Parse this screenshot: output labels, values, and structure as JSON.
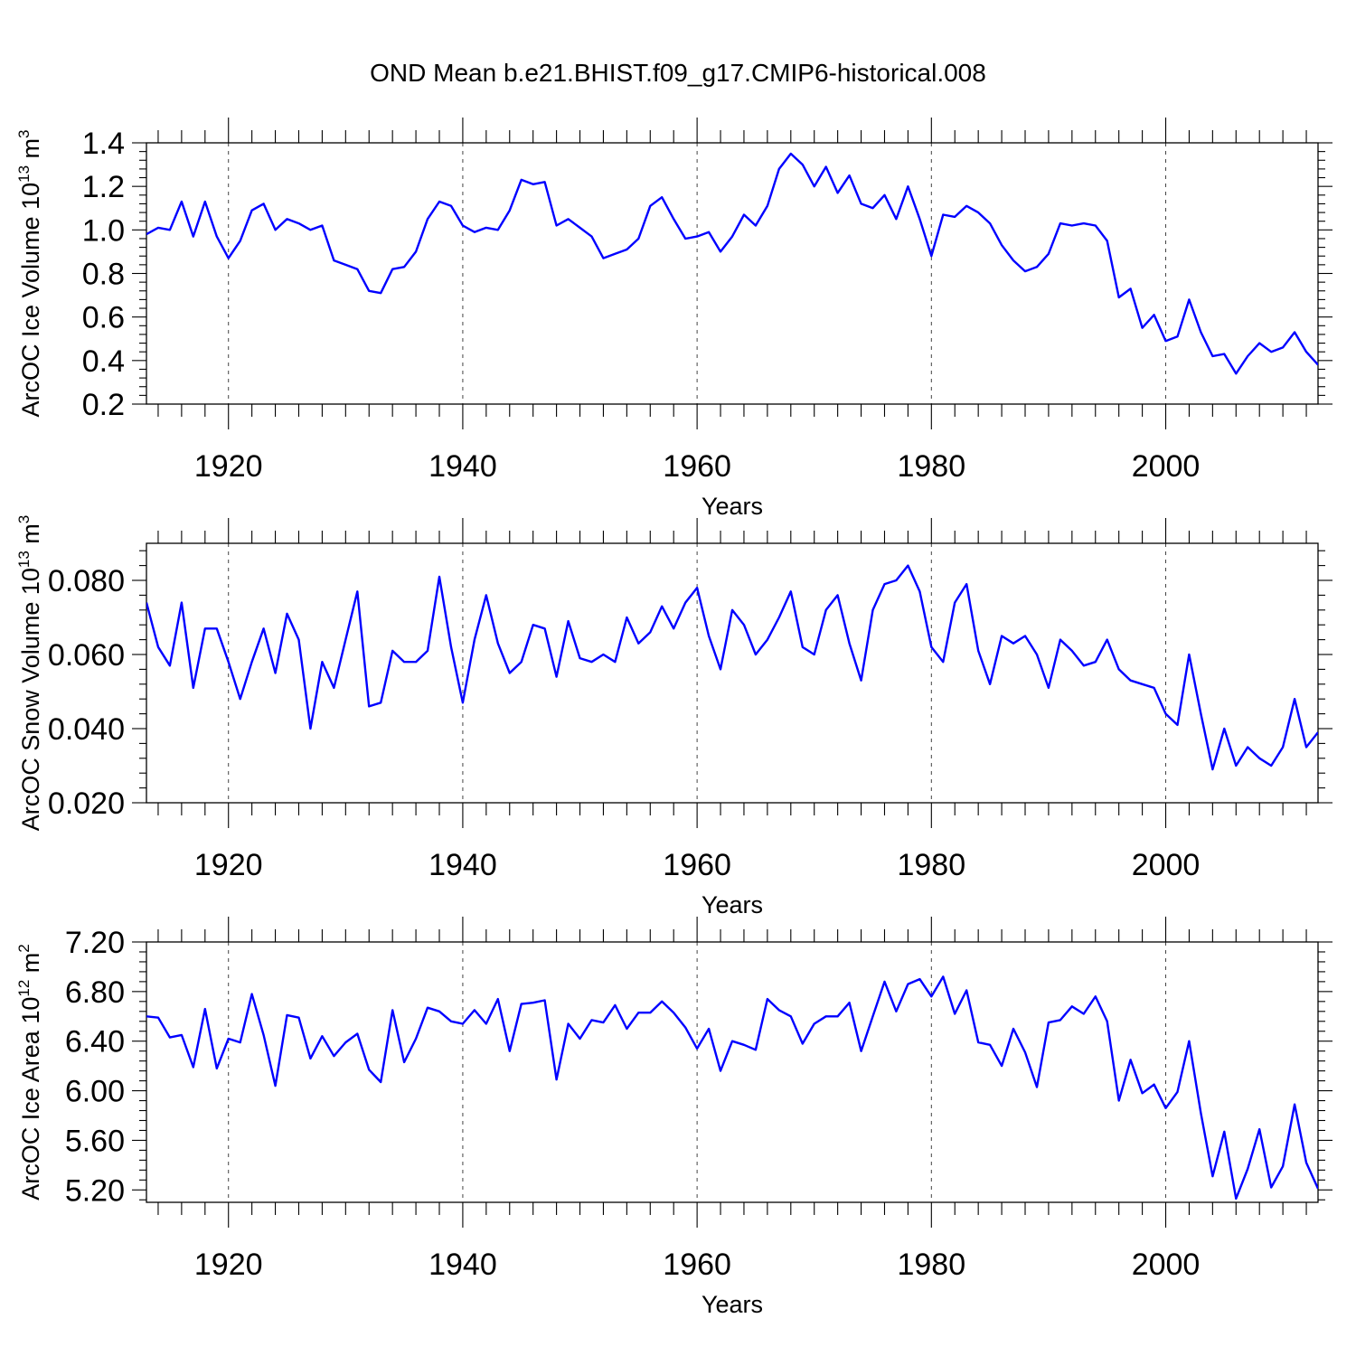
{
  "chart_data": {
    "title": "OND Mean b.e21.BHIST.f09_g17.CMIP6-historical.008",
    "series_color": "#0000ff",
    "panels": [
      {
        "type": "line",
        "ylabel": "ArcOC Ice Volume 10",
        "ylabel_exponent": "13",
        "ylabel_unit": " m",
        "ylabel_unit_exponent": "3",
        "xlabel": "Years",
        "xlim": [
          1913,
          2013
        ],
        "ylim": [
          0.2,
          1.4
        ],
        "yticks": [
          0.2,
          0.4,
          0.6,
          0.8,
          1.0,
          1.2,
          1.4
        ],
        "ytick_labels": [
          "0.2",
          "0.4",
          "0.6",
          "0.8",
          "1.0",
          "1.2",
          "1.4"
        ],
        "xticks": [
          1920,
          1940,
          1960,
          1980,
          2000
        ],
        "xtick_labels": [
          "1920",
          "1940",
          "1960",
          "1980",
          "2000"
        ],
        "x_start": 1913,
        "values": [
          0.98,
          1.01,
          1.0,
          1.13,
          0.97,
          1.13,
          0.97,
          0.87,
          0.95,
          1.09,
          1.12,
          1.0,
          1.05,
          1.03,
          1.0,
          1.02,
          0.86,
          0.84,
          0.82,
          0.72,
          0.71,
          0.82,
          0.83,
          0.9,
          1.05,
          1.13,
          1.11,
          1.02,
          0.99,
          1.01,
          1.0,
          1.09,
          1.23,
          1.21,
          1.22,
          1.02,
          1.05,
          1.01,
          0.97,
          0.87,
          0.89,
          0.91,
          0.96,
          1.11,
          1.15,
          1.05,
          0.96,
          0.97,
          0.99,
          0.9,
          0.97,
          1.07,
          1.02,
          1.11,
          1.28,
          1.35,
          1.3,
          1.2,
          1.29,
          1.17,
          1.25,
          1.12,
          1.1,
          1.16,
          1.05,
          1.2,
          1.05,
          0.88,
          1.07,
          1.06,
          1.11,
          1.08,
          1.03,
          0.93,
          0.86,
          0.81,
          0.83,
          0.89,
          1.03,
          1.02,
          1.03,
          1.02,
          0.95,
          0.69,
          0.73,
          0.55,
          0.61,
          0.49,
          0.51,
          0.68,
          0.53,
          0.42,
          0.43,
          0.34,
          0.42,
          0.48,
          0.44,
          0.46,
          0.53,
          0.44,
          0.38
        ]
      },
      {
        "type": "line",
        "ylabel": "ArcOC Snow Volume 10",
        "ylabel_exponent": "13",
        "ylabel_unit": " m",
        "ylabel_unit_exponent": "3",
        "xlabel": "Years",
        "xlim": [
          1913,
          2013
        ],
        "ylim": [
          0.02,
          0.09
        ],
        "yticks": [
          0.02,
          0.04,
          0.06,
          0.08
        ],
        "ytick_labels": [
          "0.020",
          "0.040",
          "0.060",
          "0.080"
        ],
        "xticks": [
          1920,
          1940,
          1960,
          1980,
          2000
        ],
        "xtick_labels": [
          "1920",
          "1940",
          "1960",
          "1980",
          "2000"
        ],
        "x_start": 1913,
        "values": [
          0.074,
          0.062,
          0.057,
          0.074,
          0.051,
          0.067,
          0.067,
          0.058,
          0.048,
          0.058,
          0.067,
          0.055,
          0.071,
          0.064,
          0.04,
          0.058,
          0.051,
          0.064,
          0.077,
          0.046,
          0.047,
          0.061,
          0.058,
          0.058,
          0.061,
          0.081,
          0.062,
          0.047,
          0.064,
          0.076,
          0.063,
          0.055,
          0.058,
          0.068,
          0.067,
          0.054,
          0.069,
          0.059,
          0.058,
          0.06,
          0.058,
          0.07,
          0.063,
          0.066,
          0.073,
          0.067,
          0.074,
          0.078,
          0.065,
          0.056,
          0.072,
          0.068,
          0.06,
          0.064,
          0.07,
          0.077,
          0.062,
          0.06,
          0.072,
          0.076,
          0.063,
          0.053,
          0.072,
          0.079,
          0.08,
          0.084,
          0.077,
          0.062,
          0.058,
          0.074,
          0.079,
          0.061,
          0.052,
          0.065,
          0.063,
          0.065,
          0.06,
          0.051,
          0.064,
          0.061,
          0.057,
          0.058,
          0.064,
          0.056,
          0.053,
          0.052,
          0.051,
          0.044,
          0.041,
          0.06,
          0.044,
          0.029,
          0.04,
          0.03,
          0.035,
          0.032,
          0.03,
          0.035,
          0.048,
          0.035,
          0.039
        ]
      },
      {
        "type": "line",
        "ylabel": "ArcOC Ice Area 10",
        "ylabel_exponent": "12",
        "ylabel_unit": " m",
        "ylabel_unit_exponent": "2",
        "xlabel": "Years",
        "xlim": [
          1913,
          2013
        ],
        "ylim": [
          5.1,
          7.2
        ],
        "yticks": [
          5.2,
          5.6,
          6.0,
          6.4,
          6.8,
          7.2
        ],
        "ytick_labels": [
          "5.20",
          "5.60",
          "6.00",
          "6.40",
          "6.80",
          "7.20"
        ],
        "xticks": [
          1920,
          1940,
          1960,
          1980,
          2000
        ],
        "xtick_labels": [
          "1920",
          "1940",
          "1960",
          "1980",
          "2000"
        ],
        "x_start": 1913,
        "values": [
          6.6,
          6.59,
          6.43,
          6.45,
          6.19,
          6.66,
          6.18,
          6.42,
          6.39,
          6.78,
          6.45,
          6.04,
          6.61,
          6.59,
          6.26,
          6.44,
          6.28,
          6.39,
          6.46,
          6.17,
          6.07,
          6.65,
          6.23,
          6.42,
          6.67,
          6.64,
          6.56,
          6.54,
          6.65,
          6.54,
          6.74,
          6.32,
          6.7,
          6.71,
          6.73,
          6.09,
          6.54,
          6.42,
          6.57,
          6.55,
          6.69,
          6.5,
          6.63,
          6.63,
          6.72,
          6.63,
          6.51,
          6.34,
          6.5,
          6.16,
          6.4,
          6.37,
          6.33,
          6.74,
          6.65,
          6.6,
          6.38,
          6.54,
          6.6,
          6.6,
          6.71,
          6.32,
          6.6,
          6.88,
          6.64,
          6.86,
          6.9,
          6.76,
          6.92,
          6.62,
          6.81,
          6.39,
          6.37,
          6.2,
          6.5,
          6.31,
          6.03,
          6.55,
          6.57,
          6.68,
          6.62,
          6.76,
          6.56,
          5.92,
          6.25,
          5.98,
          6.05,
          5.86,
          5.99,
          6.4,
          5.82,
          5.31,
          5.67,
          5.13,
          5.37,
          5.69,
          5.22,
          5.39,
          5.89,
          5.42,
          5.21
        ]
      }
    ]
  }
}
